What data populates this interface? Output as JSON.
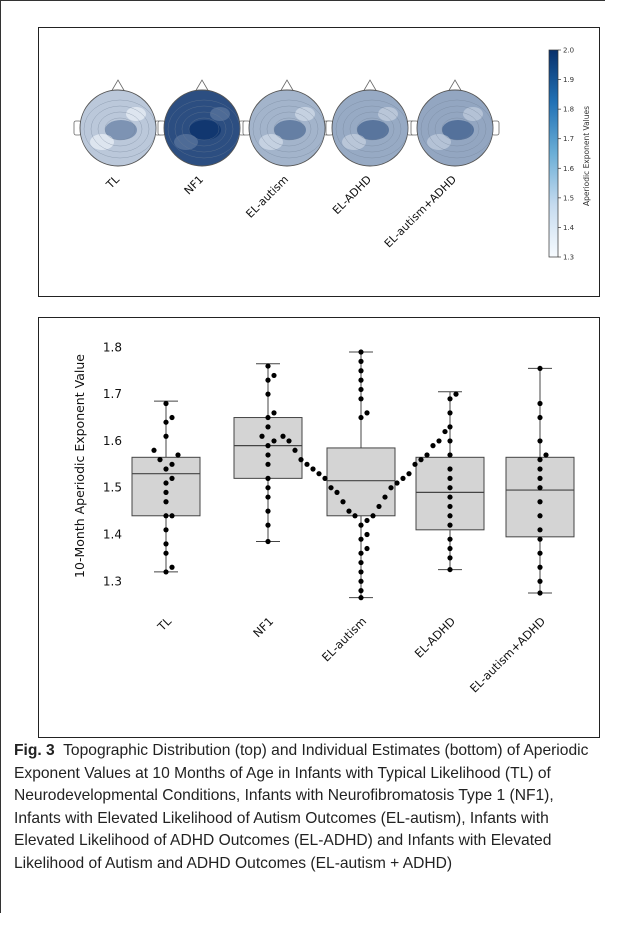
{
  "topomap_panel": {
    "maps": [
      {
        "label": "TL",
        "level": 0.25
      },
      {
        "label": "NF1",
        "level": 0.85
      },
      {
        "label": "EL-autism",
        "level": 0.35
      },
      {
        "label": "EL-ADHD",
        "level": 0.4
      },
      {
        "label": "EL-autism+ADHD",
        "level": 0.42
      }
    ],
    "colorbar": {
      "label": "Aperiodic Exponent Values",
      "min": 1.3,
      "max": 2.0,
      "ticks": [
        "2.0",
        "1.9",
        "1.8",
        "1.7",
        "1.6",
        "1.5",
        "1.4",
        "1.3"
      ],
      "color_low": "#f7fbff",
      "color_high": "#08306b"
    }
  },
  "chart_data": {
    "type": "box",
    "ylabel": "10-Month Aperiodic Exponent Value",
    "ylim": [
      1.26,
      1.82
    ],
    "yticks": [
      1.3,
      1.4,
      1.5,
      1.6,
      1.7,
      1.8
    ],
    "ytick_labels": [
      "1.3",
      "1.4",
      "1.5",
      "1.6",
      "1.7",
      "1.8"
    ],
    "categories": [
      "TL",
      "NF1",
      "EL-autism",
      "EL-ADHD",
      "EL-autism+ADHD"
    ],
    "boxes": [
      {
        "whislo": 1.32,
        "q1": 1.44,
        "median": 1.53,
        "q3": 1.565,
        "whishi": 1.685
      },
      {
        "whislo": 1.385,
        "q1": 1.52,
        "median": 1.59,
        "q3": 1.65,
        "whishi": 1.765
      },
      {
        "whislo": 1.265,
        "q1": 1.44,
        "median": 1.515,
        "q3": 1.585,
        "whishi": 1.79
      },
      {
        "whislo": 1.325,
        "q1": 1.41,
        "median": 1.49,
        "q3": 1.565,
        "whishi": 1.705
      },
      {
        "whislo": 1.275,
        "q1": 1.395,
        "median": 1.495,
        "q3": 1.565,
        "whishi": 1.755
      }
    ],
    "points": [
      [
        1.32,
        1.33,
        1.36,
        1.38,
        1.41,
        1.44,
        1.44,
        1.47,
        1.49,
        1.51,
        1.52,
        1.54,
        1.55,
        1.56,
        1.57,
        1.58,
        1.61,
        1.64,
        1.65,
        1.68
      ],
      [
        1.385,
        1.42,
        1.45,
        1.48,
        1.5,
        1.52,
        1.55,
        1.57,
        1.59,
        1.6,
        1.61,
        1.63,
        1.65,
        1.66,
        1.7,
        1.73,
        1.74,
        1.76
      ],
      [
        1.265,
        1.28,
        1.3,
        1.32,
        1.34,
        1.36,
        1.37,
        1.39,
        1.4,
        1.42,
        1.43,
        1.44,
        1.44,
        1.45,
        1.46,
        1.47,
        1.48,
        1.49,
        1.5,
        1.5,
        1.51,
        1.52,
        1.52,
        1.53,
        1.53,
        1.54,
        1.55,
        1.55,
        1.56,
        1.56,
        1.57,
        1.58,
        1.59,
        1.6,
        1.6,
        1.61,
        1.62,
        1.65,
        1.66,
        1.69,
        1.71,
        1.73,
        1.75,
        1.77,
        1.79
      ],
      [
        1.325,
        1.35,
        1.37,
        1.39,
        1.42,
        1.44,
        1.46,
        1.48,
        1.5,
        1.52,
        1.54,
        1.57,
        1.6,
        1.63,
        1.66,
        1.69,
        1.7
      ],
      [
        1.275,
        1.3,
        1.33,
        1.36,
        1.39,
        1.41,
        1.44,
        1.47,
        1.5,
        1.52,
        1.54,
        1.56,
        1.57,
        1.6,
        1.65,
        1.68,
        1.755
      ]
    ]
  },
  "caption": {
    "label": "Fig. 3",
    "text": "Topographic Distribution (top) and Individual Estimates (bottom) of Aperiodic Exponent Values at 10 Months of Age in Infants with Typical Likelihood (TL) of Neurodevelopmental Conditions, Infants with Neurofibromatosis Type 1 (NF1), Infants with Elevated Likelihood of Autism Outcomes (EL-autism), Infants with Elevated Likelihood of ADHD Outcomes (EL-ADHD) and Infants with Elevated Likelihood of Autism and ADHD Outcomes (EL-autism + ADHD)"
  }
}
